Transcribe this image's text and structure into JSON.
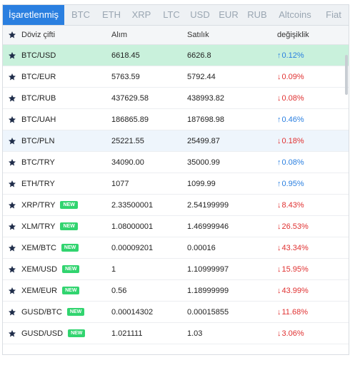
{
  "tabs": [
    "İşaretlenmiş",
    "BTC",
    "ETH",
    "XRP",
    "LTC",
    "USD",
    "EUR",
    "RUB",
    "Altcoins",
    "Fiat"
  ],
  "header": {
    "pair": "Döviz çifti",
    "buy": "Alım",
    "sell": "Satılık",
    "change": "değişiklik"
  },
  "new_label": "NEW",
  "rows": [
    {
      "pair": "BTC/USD",
      "buy": "6618.45",
      "sell": "6626.8",
      "change": "0.12%",
      "dir": "up",
      "new": false
    },
    {
      "pair": "BTC/EUR",
      "buy": "5763.59",
      "sell": "5792.44",
      "change": "0.09%",
      "dir": "down",
      "new": false
    },
    {
      "pair": "BTC/RUB",
      "buy": "437629.58",
      "sell": "438993.82",
      "change": "0.08%",
      "dir": "down",
      "new": false
    },
    {
      "pair": "BTC/UAH",
      "buy": "186865.89",
      "sell": "187698.98",
      "change": "0.46%",
      "dir": "up",
      "new": false
    },
    {
      "pair": "BTC/PLN",
      "buy": "25221.55",
      "sell": "25499.87",
      "change": "0.18%",
      "dir": "down",
      "new": false
    },
    {
      "pair": "BTC/TRY",
      "buy": "34090.00",
      "sell": "35000.99",
      "change": "0.08%",
      "dir": "up",
      "new": false
    },
    {
      "pair": "ETH/TRY",
      "buy": "1077",
      "sell": "1099.99",
      "change": "0.95%",
      "dir": "up",
      "new": false
    },
    {
      "pair": "XRP/TRY",
      "buy": "2.33500001",
      "sell": "2.54199999",
      "change": "8.43%",
      "dir": "down",
      "new": true
    },
    {
      "pair": "XLM/TRY",
      "buy": "1.08000001",
      "sell": "1.46999946",
      "change": "26.53%",
      "dir": "down",
      "new": true
    },
    {
      "pair": "XEM/BTC",
      "buy": "0.00009201",
      "sell": "0.00016",
      "change": "43.34%",
      "dir": "down",
      "new": true
    },
    {
      "pair": "XEM/USD",
      "buy": "1",
      "sell": "1.10999997",
      "change": "15.95%",
      "dir": "down",
      "new": true
    },
    {
      "pair": "XEM/EUR",
      "buy": "0.56",
      "sell": "1.18999999",
      "change": "43.99%",
      "dir": "down",
      "new": true
    },
    {
      "pair": "GUSD/BTC",
      "buy": "0.00014302",
      "sell": "0.00015855",
      "change": "11.68%",
      "dir": "down",
      "new": true
    },
    {
      "pair": "GUSD/USD",
      "buy": "1.021111",
      "sell": "1.03",
      "change": "3.06%",
      "dir": "down",
      "new": true
    }
  ],
  "colors": {
    "accent": "#2a7fe0",
    "up": "#2a7fe0",
    "down": "#e03131",
    "new_badge": "#31d46f",
    "selected_row": "#c9f1dc",
    "hover_row": "#eef5fc",
    "star": "#1f2d4a"
  },
  "icons": {
    "favorite": "star-icon",
    "up": "arrow-up-icon",
    "down": "arrow-down-icon"
  }
}
